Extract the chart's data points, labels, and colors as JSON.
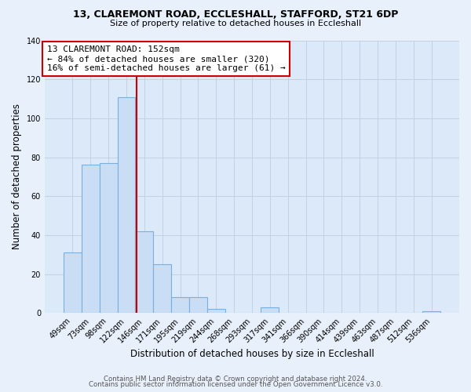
{
  "title1": "13, CLAREMONT ROAD, ECCLESHALL, STAFFORD, ST21 6DP",
  "title2": "Size of property relative to detached houses in Eccleshall",
  "xlabel": "Distribution of detached houses by size in Eccleshall",
  "ylabel": "Number of detached properties",
  "bar_labels": [
    "49sqm",
    "73sqm",
    "98sqm",
    "122sqm",
    "146sqm",
    "171sqm",
    "195sqm",
    "219sqm",
    "244sqm",
    "268sqm",
    "293sqm",
    "317sqm",
    "341sqm",
    "366sqm",
    "390sqm",
    "414sqm",
    "439sqm",
    "463sqm",
    "487sqm",
    "512sqm",
    "536sqm"
  ],
  "bar_values": [
    31,
    76,
    77,
    111,
    42,
    25,
    8,
    8,
    2,
    0,
    0,
    3,
    0,
    0,
    0,
    0,
    0,
    0,
    0,
    0,
    1
  ],
  "bar_color": "#c9ddf5",
  "bar_edge_color": "#7ab0e0",
  "vline_color": "#cc0000",
  "vline_position": 3.575,
  "annotation_text": "13 CLAREMONT ROAD: 152sqm\n← 84% of detached houses are smaller (320)\n16% of semi-detached houses are larger (61) →",
  "annotation_box_color": "#ffffff",
  "annotation_box_edge_color": "#cc0000",
  "ylim": [
    0,
    140
  ],
  "yticks": [
    0,
    20,
    40,
    60,
    80,
    100,
    120,
    140
  ],
  "footer1": "Contains HM Land Registry data © Crown copyright and database right 2024.",
  "footer2": "Contains public sector information licensed under the Open Government Licence v3.0.",
  "bg_color": "#e8f0fb",
  "plot_bg_color": "#dce9f9"
}
